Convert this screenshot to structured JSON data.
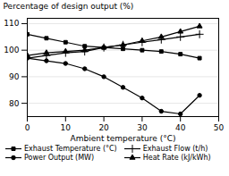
{
  "chart_data": {
    "type": "line",
    "xlabel": "Ambient temperature (°C)",
    "ylabel": "Percentage of design output (%)",
    "x": [
      0,
      5,
      10,
      15,
      20,
      25,
      30,
      35,
      40,
      45
    ],
    "xlim": [
      0,
      50
    ],
    "ylim": [
      75,
      112
    ],
    "xticks": [
      0,
      10,
      20,
      30,
      40,
      50
    ],
    "yticks": [
      80,
      90,
      100,
      110
    ],
    "grid": "y",
    "legend": "lower left",
    "series": [
      {
        "name": "Exhaust Temperature (°C)",
        "color": "black",
        "marker": "square",
        "values": [
          106,
          104.5,
          103,
          101.5,
          101,
          100.5,
          100,
          99.5,
          98.5,
          97
        ]
      },
      {
        "name": "Exhaust Flow (t/h)",
        "color": "black",
        "marker": "plus",
        "values": [
          97,
          98,
          99,
          99.5,
          101,
          102,
          103,
          104,
          105,
          106
        ]
      },
      {
        "name": "Power Output (MW)",
        "color": "black",
        "marker": "circle",
        "values": [
          97,
          96,
          95,
          93,
          90,
          86,
          82,
          77,
          76,
          83
        ]
      },
      {
        "name": "Heat Rate (kJ/kWh)",
        "color": "black",
        "marker": "triangle",
        "values": [
          98,
          99,
          99.5,
          100,
          101,
          102,
          103.5,
          105,
          107,
          109
        ]
      }
    ]
  }
}
